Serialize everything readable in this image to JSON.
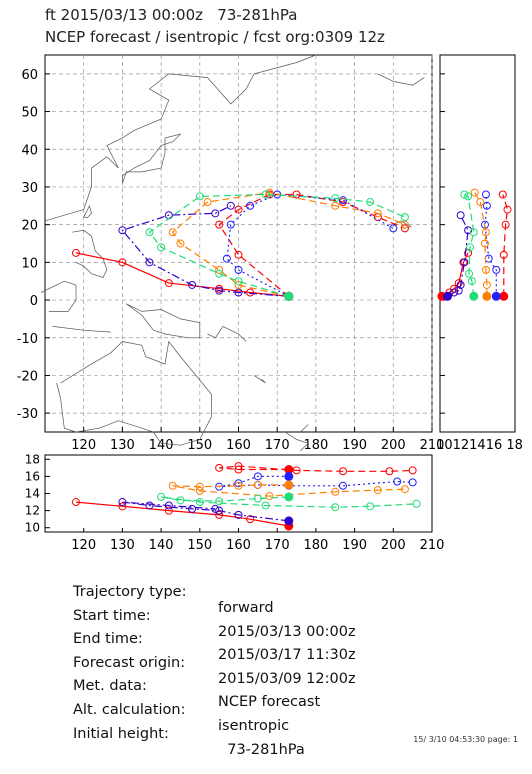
{
  "header": {
    "line1": "ft 2015/03/13 00:00z   73-281hPa",
    "line2": "NCEP forecast / isentropic / fcst org:0309 12z"
  },
  "chart_data": [
    {
      "type": "line",
      "title": "",
      "xlim": [
        110,
        210
      ],
      "ylim": [
        -35,
        65
      ],
      "x_ticks": [
        120,
        130,
        140,
        150,
        160,
        170,
        180,
        190,
        200,
        210
      ],
      "y_ticks": [
        -30,
        -20,
        -10,
        0,
        10,
        20,
        30,
        40,
        50,
        60
      ],
      "grid": true,
      "series": [
        {
          "color": "#ff0000",
          "dash": "solid",
          "points": [
            [
              173,
              1
            ],
            [
              163,
              2
            ],
            [
              155,
              3
            ],
            [
              142,
              4.5
            ],
            [
              130,
              10
            ],
            [
              118,
              12.5
            ]
          ]
        },
        {
          "color": "#ff0000",
          "dash": "dashed",
          "points": [
            [
              173,
              1
            ],
            [
              160,
              12
            ],
            [
              155,
              20
            ],
            [
              160,
              24
            ],
            [
              168,
              28
            ],
            [
              175,
              28
            ],
            [
              187,
              26
            ],
            [
              196,
              22
            ],
            [
              203,
              19
            ]
          ]
        },
        {
          "color": "#3300cc",
          "dash": "dashdot",
          "points": [
            [
              173,
              1
            ],
            [
              160,
              2
            ],
            [
              155,
              2.5
            ],
            [
              148,
              4
            ],
            [
              137,
              10
            ],
            [
              130,
              18.5
            ],
            [
              142,
              22.5
            ],
            [
              154,
              23
            ],
            [
              158,
              25
            ]
          ]
        },
        {
          "color": "#2222ff",
          "dash": "dotted",
          "points": [
            [
              173,
              1
            ],
            [
              160,
              8
            ],
            [
              157,
              11
            ],
            [
              158,
              20
            ],
            [
              163,
              25
            ],
            [
              170,
              28
            ],
            [
              187,
              26.5
            ],
            [
              200,
              19
            ]
          ]
        },
        {
          "color": "#ff7f00",
          "dash": "dashed",
          "points": [
            [
              173,
              1
            ],
            [
              160,
              4
            ],
            [
              155,
              8
            ],
            [
              145,
              15
            ],
            [
              143,
              18
            ],
            [
              152,
              26
            ],
            [
              168,
              28.5
            ],
            [
              185,
              25
            ],
            [
              196,
              23
            ],
            [
              203,
              20
            ]
          ]
        },
        {
          "color": "#22dd77",
          "dash": "dashed",
          "points": [
            [
              173,
              1
            ],
            [
              160,
              5
            ],
            [
              155,
              7
            ],
            [
              140,
              14
            ],
            [
              137,
              18
            ],
            [
              150,
              27.5
            ],
            [
              167,
              28
            ],
            [
              185,
              27
            ],
            [
              194,
              26
            ],
            [
              203,
              22
            ]
          ]
        }
      ]
    },
    {
      "type": "line",
      "title": "",
      "xlim": [
        110,
        210
      ],
      "ylim": [
        9.5,
        18.5
      ],
      "x_ticks": [
        120,
        130,
        140,
        150,
        160,
        170,
        180,
        190,
        200,
        210
      ],
      "y_ticks": [
        10,
        12,
        14,
        16,
        18
      ],
      "grid": false,
      "series": [
        {
          "color": "#ff0000",
          "dash": "solid",
          "points": [
            [
              173,
              10.2
            ],
            [
              163,
              11
            ],
            [
              155,
              11.5
            ],
            [
              142,
              12
            ],
            [
              130,
              12.5
            ],
            [
              118,
              13
            ]
          ]
        },
        {
          "color": "#ff0000",
          "dash": "dashed",
          "points": [
            [
              173,
              16.8
            ],
            [
              160,
              16.8
            ],
            [
              155,
              17
            ],
            [
              160,
              17.2
            ],
            [
              175,
              16.7
            ],
            [
              187,
              16.6
            ],
            [
              199,
              16.6
            ],
            [
              205,
              16.7
            ]
          ]
        },
        {
          "color": "#3300cc",
          "dash": "dashdot",
          "points": [
            [
              173,
              10.8
            ],
            [
              160,
              11.5
            ],
            [
              155,
              12
            ],
            [
              148,
              12.2
            ],
            [
              137,
              12.6
            ],
            [
              130,
              13
            ],
            [
              142,
              12.6
            ],
            [
              154,
              12.2
            ]
          ]
        },
        {
          "color": "#2222ff",
          "dash": "dotted",
          "points": [
            [
              173,
              16
            ],
            [
              165,
              16
            ],
            [
              160,
              15.2
            ],
            [
              155,
              14.8
            ],
            [
              165,
              15
            ],
            [
              173,
              14.9
            ],
            [
              187,
              14.9
            ],
            [
              201,
              15.4
            ],
            [
              205,
              15.3
            ]
          ]
        },
        {
          "color": "#ff7f00",
          "dash": "dashed",
          "points": [
            [
              173,
              15
            ],
            [
              165,
              15
            ],
            [
              160,
              14.9
            ],
            [
              150,
              14.8
            ],
            [
              143,
              14.9
            ],
            [
              150,
              14.3
            ],
            [
              168,
              13.7
            ],
            [
              185,
              14.2
            ],
            [
              196,
              14.4
            ],
            [
              203,
              14.5
            ]
          ]
        },
        {
          "color": "#22dd77",
          "dash": "dashed",
          "points": [
            [
              173,
              13.6
            ],
            [
              165,
              13.4
            ],
            [
              155,
              13.1
            ],
            [
              145,
              13.2
            ],
            [
              140,
              13.6
            ],
            [
              150,
              13
            ],
            [
              167,
              12.6
            ],
            [
              185,
              12.4
            ],
            [
              194,
              12.5
            ],
            [
              206,
              12.8
            ]
          ]
        }
      ]
    },
    {
      "type": "line",
      "title": "",
      "xlim": [
        10,
        18
      ],
      "ylim": [
        -35,
        65
      ],
      "x_ticks_text": "10121416 18",
      "grid": false,
      "series": [
        {
          "color": "#ff0000",
          "dash": "solid",
          "points": [
            [
              10.2,
              1
            ],
            [
              11,
              2
            ],
            [
              11.5,
              3
            ],
            [
              12,
              4.5
            ],
            [
              12.5,
              10
            ],
            [
              13,
              12.5
            ]
          ]
        },
        {
          "color": "#ff0000",
          "dash": "dashed",
          "points": [
            [
              16.8,
              1
            ],
            [
              16.8,
              12
            ],
            [
              17,
              20
            ],
            [
              17.2,
              24
            ],
            [
              16.7,
              28
            ]
          ]
        },
        {
          "color": "#3300cc",
          "dash": "dashdot",
          "points": [
            [
              10.8,
              1
            ],
            [
              11.5,
              2
            ],
            [
              12,
              2.5
            ],
            [
              12.2,
              4
            ],
            [
              12.6,
              10
            ],
            [
              13,
              18.5
            ],
            [
              12.2,
              22.5
            ]
          ]
        },
        {
          "color": "#2222ff",
          "dash": "dotted",
          "points": [
            [
              16,
              1
            ],
            [
              16,
              8
            ],
            [
              15.2,
              11
            ],
            [
              14.8,
              20
            ],
            [
              15,
              25
            ],
            [
              14.9,
              28
            ]
          ]
        },
        {
          "color": "#ff7f00",
          "dash": "dashed",
          "points": [
            [
              15,
              1
            ],
            [
              15,
              4
            ],
            [
              14.9,
              8
            ],
            [
              14.8,
              15
            ],
            [
              14.9,
              18
            ],
            [
              14.3,
              26
            ],
            [
              13.7,
              28.5
            ]
          ]
        },
        {
          "color": "#22dd77",
          "dash": "dashed",
          "points": [
            [
              13.6,
              1
            ],
            [
              13.4,
              5
            ],
            [
              13.1,
              7
            ],
            [
              13.2,
              14
            ],
            [
              13.6,
              18
            ],
            [
              13,
              27.5
            ],
            [
              12.6,
              28
            ]
          ]
        }
      ]
    }
  ],
  "info": [
    {
      "label": "Trajectory type:",
      "value": "forward"
    },
    {
      "label": "Start time:",
      "value": "2015/03/13 00:00z"
    },
    {
      "label": "End time:",
      "value": "2015/03/17 11:30z"
    },
    {
      "label": "Forecast origin:",
      "value": "2015/03/09 12:00z"
    },
    {
      "label": "Met. data:",
      "value": "NCEP forecast"
    },
    {
      "label": "Alt. calculation:",
      "value": "isentropic"
    },
    {
      "label": "Initial height:",
      "value": "  73-281hPa"
    }
  ],
  "footer": "15/ 3/10 04:53:30 page: 1"
}
